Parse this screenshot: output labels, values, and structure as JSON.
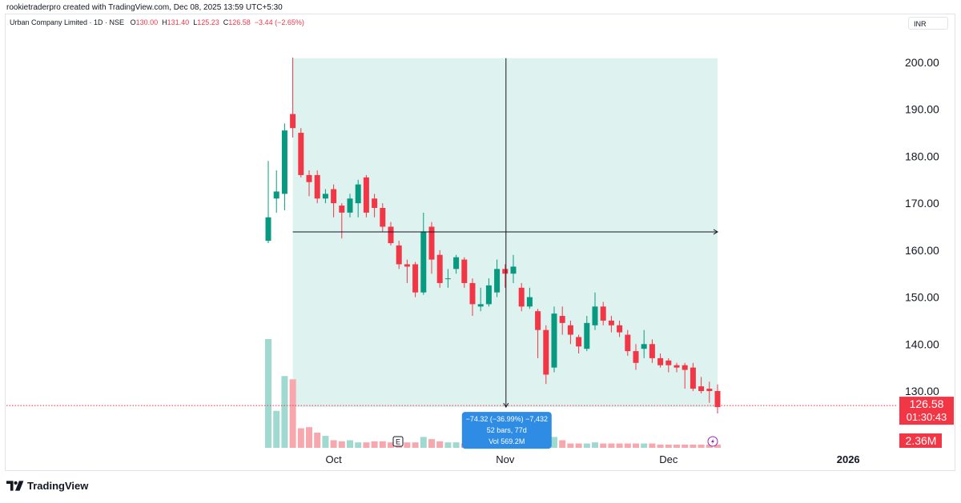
{
  "credit": "rookietraderpro created with TradingView.com, Dec 08, 2025 13:59 UTC+5:30",
  "legend": {
    "symbol": "Urban Company Limited · 1D · NSE",
    "o_label": "O",
    "o": "130.00",
    "h_label": "H",
    "h": "131.40",
    "l_label": "L",
    "l": "125.23",
    "c_label": "C",
    "c": "126.58",
    "change": "−3.44 (−2.65%)"
  },
  "currency": "INR",
  "brand": "TradingView",
  "colors": {
    "up": "#089981",
    "down": "#f23645",
    "range": "#d8f0ec",
    "tooltip": "#2f8ce5"
  },
  "last_price": {
    "value": "126.58",
    "countdown": "01:30:43"
  },
  "volume_badge": "2.36M",
  "earnings_marker": "E",
  "measure": {
    "line1": "−74.32 (−36.99%) −7,432",
    "line2": "52 bars, 77d",
    "line3": "Vol 569.2M"
  },
  "chart_data": {
    "type": "candlestick",
    "y_ticks": [
      "200.00",
      "190.00",
      "180.00",
      "170.00",
      "160.00",
      "150.00",
      "140.00",
      "130.00"
    ],
    "y_tick_values": [
      200,
      190,
      180,
      170,
      160,
      150,
      140,
      130
    ],
    "ylim": [
      122,
      205
    ],
    "x_ticks": [
      {
        "label": "Oct",
        "index": 8
      },
      {
        "label": "Nov",
        "index": 29
      },
      {
        "label": "Dec",
        "index": 49
      },
      {
        "label": "2026",
        "index": 71
      }
    ],
    "bar_count": 56,
    "volume_max": 1.0,
    "candles": [
      [
        162.0,
        167.0,
        179.0,
        161.5,
        1.0
      ],
      [
        171.0,
        172.5,
        177.0,
        168.0,
        0.34
      ],
      [
        172.0,
        185.5,
        187.0,
        168.5,
        0.66
      ],
      [
        189.0,
        186.0,
        201.0,
        184.0,
        0.63
      ],
      [
        185.0,
        176.0,
        186.0,
        175.5,
        0.18
      ],
      [
        176.0,
        174.5,
        177.0,
        171.5,
        0.19
      ],
      [
        176.0,
        171.0,
        177.0,
        170.0,
        0.14
      ],
      [
        171.0,
        172.0,
        173.0,
        170.0,
        0.11
      ],
      [
        173.0,
        170.0,
        174.0,
        167.0,
        0.07
      ],
      [
        169.5,
        168.0,
        170.0,
        162.5,
        0.06
      ],
      [
        168.0,
        171.0,
        172.0,
        167.0,
        0.07
      ],
      [
        170.0,
        174.0,
        175.0,
        167.0,
        0.05
      ],
      [
        175.5,
        168.0,
        176.0,
        167.0,
        0.05
      ],
      [
        171.0,
        169.0,
        172.0,
        167.0,
        0.06
      ],
      [
        169.0,
        165.0,
        170.0,
        164.0,
        0.06
      ],
      [
        165.0,
        161.5,
        166.0,
        161.0,
        0.05
      ],
      [
        161.0,
        157.0,
        162.0,
        156.0,
        0.05
      ],
      [
        157.0,
        156.5,
        158.0,
        153.0,
        0.05
      ],
      [
        157.0,
        151.0,
        157.5,
        150.0,
        0.05
      ],
      [
        151.0,
        164.0,
        168.0,
        150.5,
        0.1
      ],
      [
        165.0,
        158.0,
        166.0,
        155.0,
        0.08
      ],
      [
        159.0,
        153.0,
        160.0,
        152.0,
        0.06
      ],
      [
        154.0,
        154.0,
        156.0,
        152.0,
        0.05
      ],
      [
        156.0,
        158.5,
        159.0,
        155.0,
        0.05
      ],
      [
        158.0,
        153.0,
        158.5,
        152.0,
        0.04
      ],
      [
        153.0,
        148.5,
        154.0,
        146.0,
        0.05
      ],
      [
        148.0,
        148.5,
        152.0,
        147.0,
        0.04
      ],
      [
        148.5,
        152.5,
        154.0,
        148.0,
        0.05
      ],
      [
        151.0,
        156.0,
        158.0,
        150.0,
        0.05
      ],
      [
        156.0,
        155.0,
        157.0,
        152.0,
        0.05
      ],
      [
        155.0,
        156.5,
        159.0,
        153.0,
        0.05
      ],
      [
        152.0,
        148.0,
        153.0,
        147.0,
        0.05
      ],
      [
        148.0,
        150.0,
        152.0,
        147.5,
        0.04
      ],
      [
        147.0,
        143.0,
        147.5,
        137.0,
        0.04
      ],
      [
        143.0,
        133.5,
        144.0,
        131.5,
        0.05
      ],
      [
        135.0,
        146.5,
        148.0,
        134.0,
        0.1
      ],
      [
        146.0,
        144.5,
        148.0,
        142.0,
        0.07
      ],
      [
        144.0,
        142.0,
        145.0,
        140.0,
        0.04
      ],
      [
        141.5,
        139.5,
        142.0,
        138.0,
        0.04
      ],
      [
        139.0,
        144.5,
        146.0,
        138.5,
        0.04
      ],
      [
        144.0,
        148.0,
        151.0,
        143.0,
        0.05
      ],
      [
        148.0,
        145.0,
        149.0,
        144.0,
        0.04
      ],
      [
        145.0,
        144.0,
        146.0,
        142.5,
        0.04
      ],
      [
        144.0,
        142.5,
        145.0,
        141.5,
        0.04
      ],
      [
        142.0,
        138.5,
        143.0,
        137.5,
        0.04
      ],
      [
        138.5,
        136.0,
        140.0,
        134.5,
        0.04
      ],
      [
        139.0,
        140.0,
        143.0,
        137.0,
        0.04
      ],
      [
        140.0,
        137.0,
        141.0,
        136.0,
        0.04
      ],
      [
        137.0,
        135.5,
        138.0,
        135.0,
        0.03
      ],
      [
        136.5,
        135.5,
        137.0,
        134.0,
        0.03
      ],
      [
        135.5,
        135.0,
        136.0,
        134.0,
        0.03
      ],
      [
        135.5,
        134.5,
        136.0,
        130.5,
        0.03
      ],
      [
        135.0,
        130.5,
        136.0,
        130.0,
        0.03
      ],
      [
        131.0,
        130.0,
        133.0,
        129.5,
        0.03
      ],
      [
        130.5,
        130.0,
        132.0,
        127.5,
        0.03
      ],
      [
        130.0,
        126.58,
        131.4,
        125.23,
        0.03
      ]
    ],
    "measure_range": {
      "start_index": 3,
      "end_index": 55,
      "start_price": 200.9,
      "end_price": 126.58,
      "mid_price": 163.9
    }
  }
}
